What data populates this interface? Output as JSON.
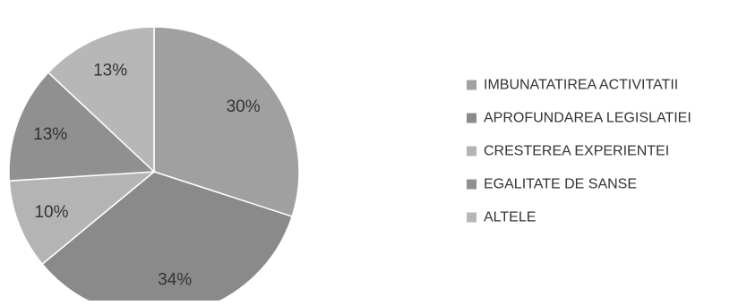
{
  "chart_data": {
    "type": "pie",
    "title": "",
    "categories": [
      "IMBUNATATIREA ACTIVITATII",
      "APROFUNDAREA LEGISLATIEI",
      "CRESTEREA EXPERIENTEI",
      "EGALITATE DE SANSE",
      "ALTELE"
    ],
    "values": [
      30,
      34,
      10,
      13,
      13
    ],
    "labels": [
      "30%",
      "34%",
      "10%",
      "13%",
      "13%"
    ],
    "colors": [
      "#a0a0a0",
      "#8a8a8a",
      "#b4b4b4",
      "#909090",
      "#b7b7b7"
    ],
    "legend_position": "right",
    "start_angle": "top",
    "direction": "clockwise"
  }
}
